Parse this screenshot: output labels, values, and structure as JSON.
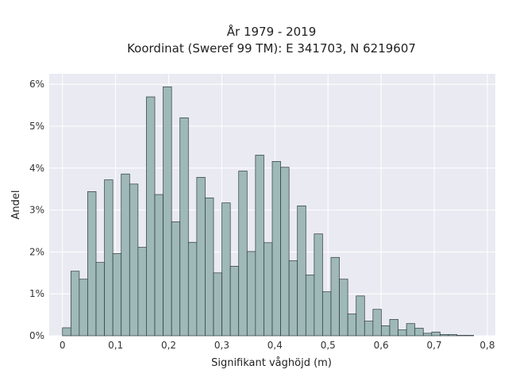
{
  "chart_data": {
    "type": "bar",
    "title": "År 1979 - 2019",
    "subtitle": "Koordinat (Sweref 99 TM): E 341703, N 6219607",
    "xlabel": "Signifikant våghöjd (m)",
    "ylabel": "Andel",
    "xlim": [
      -0.025,
      0.815
    ],
    "ylim": [
      0,
      0.0625
    ],
    "xticks": [
      0,
      0.1,
      0.2,
      0.3,
      0.4,
      0.5,
      0.6,
      0.7,
      0.8
    ],
    "xtick_labels": [
      "0",
      "0,1",
      "0,2",
      "0,3",
      "0,4",
      "0,5",
      "0,6",
      "0,7",
      "0,8"
    ],
    "yticks": [
      0,
      0.01,
      0.02,
      0.03,
      0.04,
      0.05,
      0.06
    ],
    "ytick_labels": [
      "0%",
      "1%",
      "2%",
      "3%",
      "4%",
      "5%",
      "6%"
    ],
    "grid": true,
    "bin_width": 0.0158,
    "bin_starts": [
      0,
      0.0158,
      0.0316,
      0.0474,
      0.0632,
      0.079,
      0.0948,
      0.1106,
      0.1264,
      0.1422,
      0.158,
      0.1738,
      0.1896,
      0.2054,
      0.2212,
      0.237,
      0.2528,
      0.2686,
      0.2844,
      0.3002,
      0.316,
      0.3318,
      0.3476,
      0.3634,
      0.3792,
      0.395,
      0.4108,
      0.4266,
      0.4424,
      0.4582,
      0.474,
      0.4898,
      0.5056,
      0.5214,
      0.5372,
      0.553,
      0.5688,
      0.5846,
      0.6004,
      0.6162,
      0.632,
      0.6478,
      0.6636,
      0.6794,
      0.6952,
      0.711,
      0.7268,
      0.7426,
      0.7584
    ],
    "values": [
      0.0019,
      0.0154,
      0.0135,
      0.0344,
      0.0175,
      0.0372,
      0.0196,
      0.0386,
      0.0362,
      0.0211,
      0.057,
      0.0337,
      0.0594,
      0.0272,
      0.052,
      0.0223,
      0.0378,
      0.0329,
      0.015,
      0.0317,
      0.0166,
      0.0393,
      0.0201,
      0.0431,
      0.0222,
      0.0416,
      0.0402,
      0.0179,
      0.031,
      0.0145,
      0.0243,
      0.0105,
      0.0187,
      0.0135,
      0.0052,
      0.0095,
      0.0035,
      0.0063,
      0.0024,
      0.0039,
      0.0014,
      0.0029,
      0.0018,
      0.0006,
      0.0009,
      0.0003,
      0.0003,
      0.0001,
      0.0001
    ],
    "colors": {
      "bar_fill": "#9fb8b8",
      "bar_stroke": "#2d3b3b",
      "plot_bg": "#eaeaf2",
      "grid": "#ffffff"
    }
  }
}
